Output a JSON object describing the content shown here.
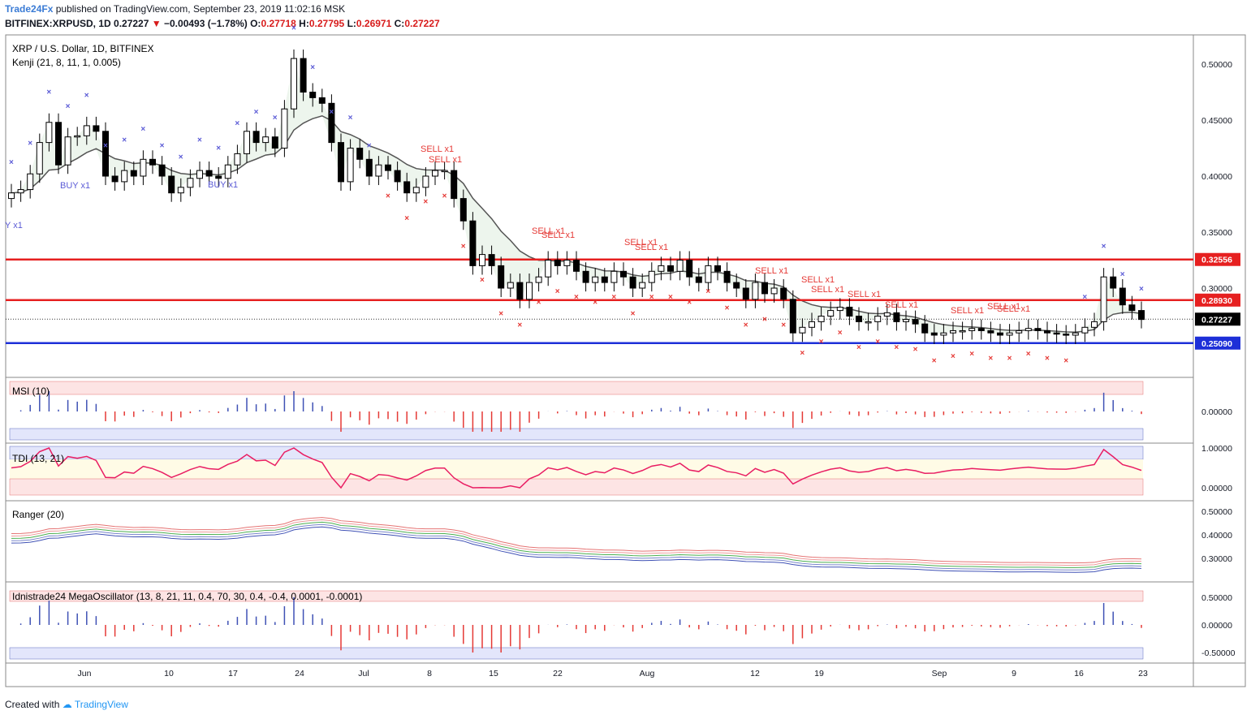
{
  "header": {
    "publisher": "Trade24Fx",
    "published_text": "published on TradingView.com, September 23, 2019 11:02:16 MSK",
    "symbol": "BITFINEX:XRPUSD, 1D",
    "last": "0.27227",
    "change": "−0.00493 (−1.78%)",
    "ohlc_o_label": "O:",
    "ohlc_o": "0.27718",
    "ohlc_h_label": "H:",
    "ohlc_h": "0.27795",
    "ohlc_l_label": "L:",
    "ohlc_l": "0.26971",
    "ohlc_c_label": "C:",
    "ohlc_c": "0.27227"
  },
  "footer": {
    "created_with": "Created with",
    "brand": "TradingView"
  },
  "panes": {
    "main": {
      "title": "XRP / U.S. Dollar, 1D, BITFINEX",
      "indicator": "Kenji (21, 8, 11, 1, 0.005)"
    },
    "msi": {
      "title": "MSI (10)"
    },
    "tdi": {
      "title": "TDI (13, 21)"
    },
    "ranger": {
      "title": "Ranger (20)"
    },
    "mega": {
      "title": "Idnistrade24 MegaOscillator (13, 8, 21, 11, 0.4, 70, 30, 0.4, -0.4, 0.0001, -0.0001)"
    }
  },
  "chart_data": {
    "type": "candlestick",
    "symbol": "XRPUSD",
    "interval": "1D",
    "x_ticks": [
      "Jun",
      "10",
      "17",
      "24",
      "Jul",
      "8",
      "15",
      "22",
      "Aug",
      "12",
      "19",
      "Sep",
      "9",
      "16",
      "23"
    ],
    "y_ticks": [
      "0.50000",
      "0.45000",
      "0.40000",
      "0.35000",
      "0.30000"
    ],
    "ylim": [
      0.225,
      0.52
    ],
    "last_price": "0.27227",
    "horizontal_lines": [
      {
        "price": 0.32556,
        "label": "0.32556",
        "color": "#e62020"
      },
      {
        "price": 0.2893,
        "label": "0.28930",
        "color": "#e62020"
      },
      {
        "price": 0.2509,
        "label": "0.25090",
        "color": "#1d2fd8"
      }
    ],
    "close_estimates": [
      0.385,
      0.388,
      0.402,
      0.43,
      0.448,
      0.41,
      0.435,
      0.436,
      0.445,
      0.44,
      0.4,
      0.395,
      0.405,
      0.4,
      0.415,
      0.41,
      0.4,
      0.385,
      0.39,
      0.398,
      0.405,
      0.4,
      0.398,
      0.41,
      0.42,
      0.44,
      0.43,
      0.435,
      0.425,
      0.46,
      0.505,
      0.475,
      0.47,
      0.465,
      0.43,
      0.395,
      0.425,
      0.415,
      0.4,
      0.41,
      0.405,
      0.395,
      0.385,
      0.39,
      0.4,
      0.405,
      0.405,
      0.38,
      0.36,
      0.32,
      0.33,
      0.32,
      0.3,
      0.305,
      0.29,
      0.305,
      0.31,
      0.325,
      0.32,
      0.325,
      0.315,
      0.305,
      0.31,
      0.305,
      0.315,
      0.31,
      0.3,
      0.305,
      0.315,
      0.32,
      0.315,
      0.325,
      0.31,
      0.305,
      0.32,
      0.315,
      0.305,
      0.3,
      0.29,
      0.305,
      0.295,
      0.3,
      0.29,
      0.26,
      0.265,
      0.27,
      0.275,
      0.28,
      0.283,
      0.275,
      0.27,
      0.27,
      0.275,
      0.278,
      0.27,
      0.272,
      0.268,
      0.26,
      0.258,
      0.26,
      0.262,
      0.262,
      0.264,
      0.262,
      0.26,
      0.258,
      0.26,
      0.262,
      0.264,
      0.262,
      0.26,
      0.259,
      0.258,
      0.26,
      0.265,
      0.27,
      0.31,
      0.3,
      0.285,
      0.28,
      0.272
    ],
    "markers": [
      {
        "text": "BUY x1"
      },
      {
        "text": "BUY x1"
      },
      {
        "text": "Y x1"
      },
      {
        "text": "SELL x1"
      },
      {
        "text": "SELL x1"
      },
      {
        "text": "SELL x1"
      },
      {
        "text": "SELL x1"
      },
      {
        "text": "SELL x1"
      },
      {
        "text": "SELL x1"
      },
      {
        "text": "SELL x1"
      },
      {
        "text": "SELL x1"
      },
      {
        "text": "SELL x1"
      },
      {
        "text": "SELL x1"
      },
      {
        "text": "SELL x1"
      },
      {
        "text": "SELL x1"
      },
      {
        "text": "SELL x1"
      },
      {
        "text": "SELL x1"
      }
    ],
    "subpanes": {
      "msi": {
        "y_ticks": [
          "0.00000"
        ]
      },
      "tdi": {
        "y_ticks": [
          "1.00000",
          "0.00000"
        ]
      },
      "ranger": {
        "y_ticks": [
          "0.50000",
          "0.40000",
          "0.30000"
        ]
      },
      "mega": {
        "y_ticks": [
          "0.50000",
          "0.00000",
          "-0.50000"
        ]
      }
    }
  },
  "colors": {
    "up": "#ffffff",
    "down": "#000000",
    "sell": "#e53935",
    "buy": "#5b5bd6",
    "red_line": "#e62020",
    "blue_line": "#1d2fd8"
  }
}
